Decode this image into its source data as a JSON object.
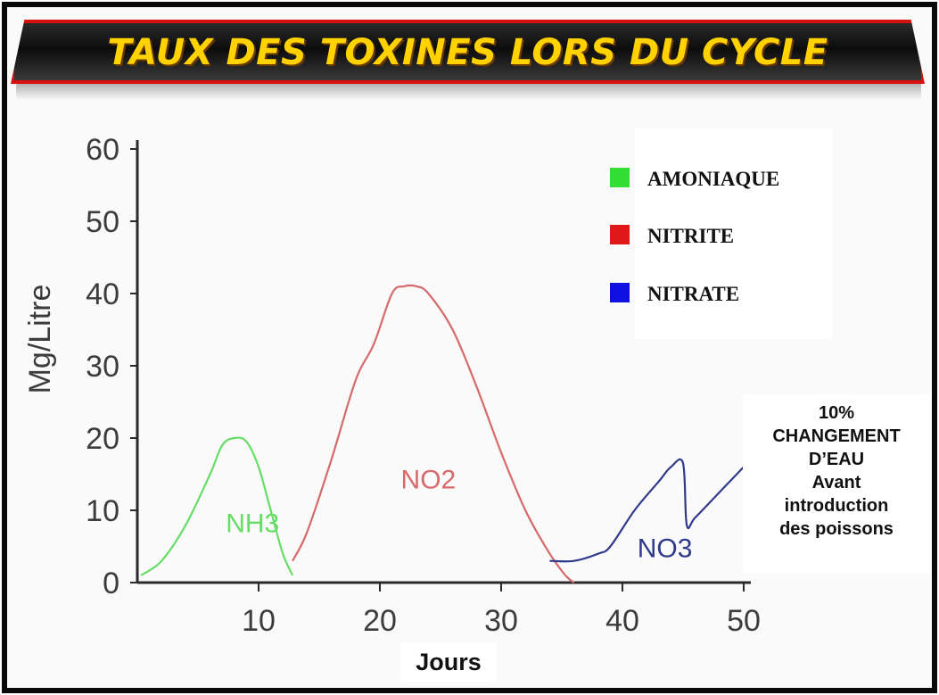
{
  "title": "TAUX DES TOXINES LORS DU CYCLE",
  "chart_data": {
    "type": "line",
    "ylabel": "Mg/Litre",
    "xlabel": "Jours",
    "xlim": [
      0,
      50
    ],
    "ylim": [
      0,
      60
    ],
    "xticks": [
      10,
      20,
      30,
      40,
      50
    ],
    "yticks": [
      0,
      10,
      20,
      30,
      40,
      50,
      60
    ],
    "grid": false,
    "legend_position": "top-right",
    "legend": [
      {
        "label": "AMONIAQUE",
        "color": "#33dd33"
      },
      {
        "label": "NITRITE",
        "color": "#e01818"
      },
      {
        "label": "NITRATE",
        "color": "#1010e0"
      }
    ],
    "series": [
      {
        "curve_label": "NH3",
        "color": "#66dd66",
        "points": [
          [
            0.3,
            1
          ],
          [
            2,
            3
          ],
          [
            4,
            8
          ],
          [
            6,
            15
          ],
          [
            7,
            19
          ],
          [
            8,
            20
          ],
          [
            9,
            19.5
          ],
          [
            10,
            16
          ],
          [
            11,
            10
          ],
          [
            12,
            4
          ],
          [
            12.8,
            1
          ]
        ]
      },
      {
        "curve_label": "NO2",
        "color": "#d66a6a",
        "points": [
          [
            12.8,
            3
          ],
          [
            14,
            7
          ],
          [
            16,
            17
          ],
          [
            18,
            28
          ],
          [
            19.5,
            33
          ],
          [
            21,
            40
          ],
          [
            22,
            41
          ],
          [
            23,
            41
          ],
          [
            24,
            40
          ],
          [
            26,
            35
          ],
          [
            28,
            27
          ],
          [
            30,
            18
          ],
          [
            32,
            10
          ],
          [
            34,
            4
          ],
          [
            35.3,
            1
          ],
          [
            36,
            0
          ]
        ]
      },
      {
        "curve_label": "NO3",
        "color": "#2f3a8a",
        "points": [
          [
            34,
            3
          ],
          [
            36,
            3
          ],
          [
            38,
            4
          ],
          [
            39,
            5
          ],
          [
            41,
            10
          ],
          [
            43,
            14
          ],
          [
            44,
            16
          ],
          [
            45,
            16.5
          ],
          [
            45.3,
            8
          ],
          [
            46,
            9
          ],
          [
            48,
            12.5
          ],
          [
            50,
            16
          ]
        ]
      }
    ],
    "curve_label_positions": {
      "NH3": [
        9.5,
        7
      ],
      "NO2": [
        24,
        13
      ],
      "NO3": [
        43.5,
        3.5
      ]
    },
    "annotation": [
      "10%",
      "CHANGEMENT",
      "D’EAU",
      "Avant",
      "introduction",
      "des poissons"
    ]
  }
}
